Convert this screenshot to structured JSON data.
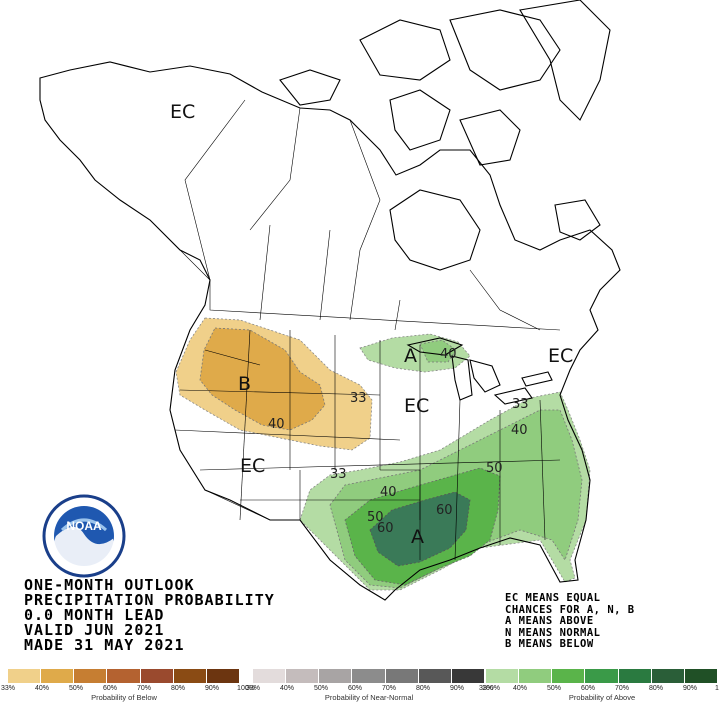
{
  "title_lines": [
    "ONE-MONTH OUTLOOK",
    "PRECIPITATION PROBABILITY",
    "0.0 MONTH LEAD",
    "VALID JUN 2021",
    "MADE 31 MAY 2021"
  ],
  "legend_notes": [
    "EC MEANS EQUAL",
    "CHANCES FOR A, N, B",
    "A MEANS ABOVE",
    "N MEANS NORMAL",
    "B MEANS BELOW"
  ],
  "map_labels": {
    "ec_alaska": "EC",
    "ec_northeast": "EC",
    "ec_central": "EC",
    "ec_southwest": "EC",
    "below": "B",
    "above_great_lakes": "A",
    "above_gulf": "A"
  },
  "contour_labels": {
    "b33": "33",
    "b40": "40",
    "a40_lakes": "40",
    "a33_east": "33",
    "a40_east": "40",
    "a50_east": "50",
    "a33_south": "33",
    "a40_south": "40",
    "a50_south": "50",
    "a60_a": "60",
    "a60_b": "60"
  },
  "logo": {
    "text": "NOAA",
    "ring_text": "NATIONAL OCEANIC AND ATMOSPHERIC ADMINISTRATION · U.S. DEPARTMENT OF COMMERCE"
  },
  "scales": [
    {
      "caption": "Probability of Below",
      "ticks": [
        "33%",
        "40%",
        "50%",
        "60%",
        "70%",
        "80%",
        "90%",
        "100%"
      ],
      "colors": [
        "#f0d08a",
        "#dfaa4a",
        "#c67e32",
        "#b46230",
        "#9a4a2e",
        "#8a4b14",
        "#6c3510"
      ]
    },
    {
      "caption": "Probability of Near-Normal",
      "ticks": [
        "33%",
        "40%",
        "50%",
        "60%",
        "70%",
        "80%",
        "90%",
        "100%"
      ],
      "colors": [
        "#e3dcdc",
        "#c4bcbc",
        "#a8a4a4",
        "#8c8c8c",
        "#787878",
        "#585858",
        "#383838"
      ]
    },
    {
      "caption": "Probability of Above",
      "ticks": [
        "33%",
        "40%",
        "50%",
        "60%",
        "70%",
        "80%",
        "90%",
        "100%"
      ],
      "colors": [
        "#b4dca4",
        "#90cc7e",
        "#5ab44a",
        "#3a9a48",
        "#2a7a40",
        "#2a5e38",
        "#205026"
      ]
    }
  ],
  "colors": {
    "below_33": "#f0d08a",
    "below_40": "#dfaa4a",
    "above_33": "#b4dca4",
    "above_40": "#90cc7e",
    "above_50": "#5ab44a",
    "above_60": "#3a7a58"
  }
}
